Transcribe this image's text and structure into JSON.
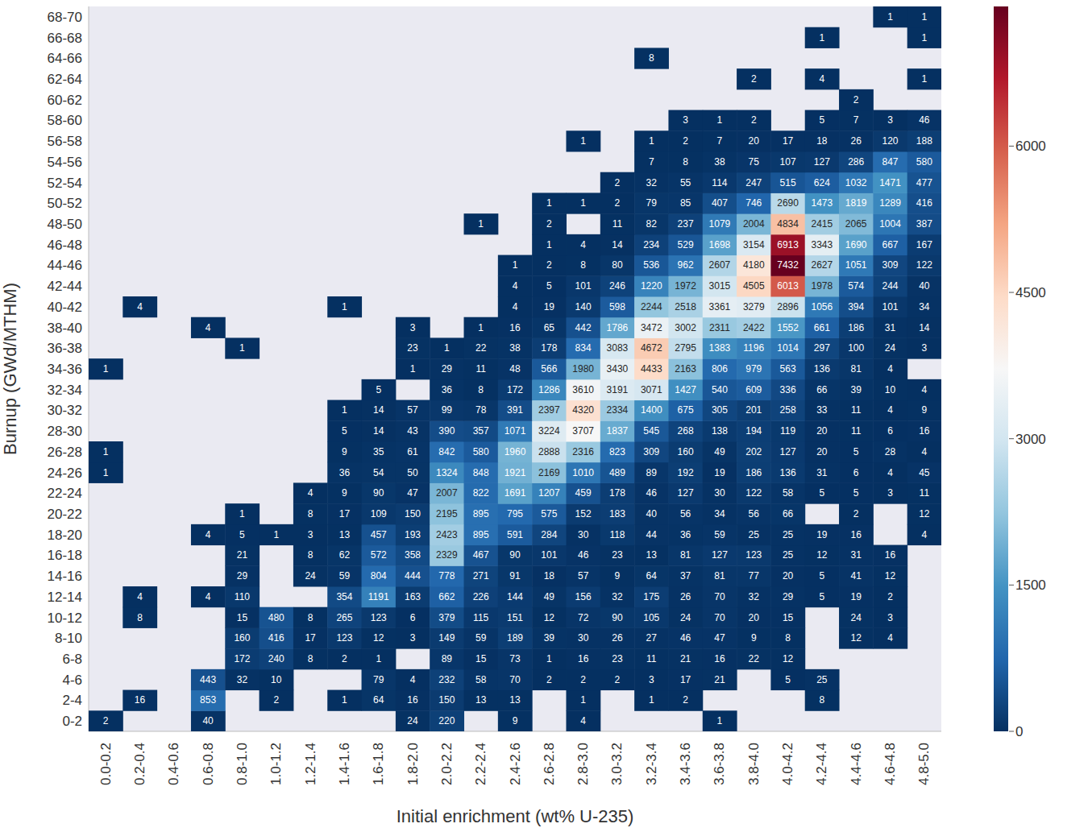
{
  "chart_data": {
    "type": "heatmap",
    "xlabel": "Initial enrichment (wt% U-235)",
    "ylabel": "Burnup (GWd/MTHM)",
    "data_labels": true,
    "x_categories": [
      "0.0-0.2",
      "0.2-0.4",
      "0.4-0.6",
      "0.6-0.8",
      "0.8-1.0",
      "1.0-1.2",
      "1.2-1.4",
      "1.4-1.6",
      "1.6-1.8",
      "1.8-2.0",
      "2.0-2.2",
      "2.2-2.4",
      "2.4-2.6",
      "2.6-2.8",
      "2.8-3.0",
      "3.0-3.2",
      "3.2-3.4",
      "3.4-3.6",
      "3.6-3.8",
      "3.8-4.0",
      "4.0-4.2",
      "4.2-4.4",
      "4.4-4.6",
      "4.6-4.8",
      "4.8-5.0"
    ],
    "y_categories": [
      "0-2",
      "2-4",
      "4-6",
      "6-8",
      "8-10",
      "10-12",
      "12-14",
      "14-16",
      "16-18",
      "18-20",
      "20-22",
      "22-24",
      "24-26",
      "26-28",
      "28-30",
      "30-32",
      "32-34",
      "34-36",
      "36-38",
      "38-40",
      "40-42",
      "42-44",
      "44-46",
      "46-48",
      "48-50",
      "50-52",
      "52-54",
      "54-56",
      "56-58",
      "58-60",
      "60-62",
      "62-64",
      "64-66",
      "66-68",
      "68-70"
    ],
    "cells": [
      [
        2,
        null,
        null,
        40,
        null,
        null,
        null,
        null,
        null,
        24,
        220,
        null,
        9,
        null,
        4,
        null,
        null,
        null,
        1,
        null,
        null,
        null,
        null,
        null,
        null
      ],
      [
        null,
        16,
        null,
        853,
        null,
        2,
        null,
        1,
        64,
        16,
        150,
        13,
        13,
        null,
        1,
        null,
        1,
        2,
        null,
        null,
        null,
        8,
        null,
        null,
        null
      ],
      [
        null,
        null,
        null,
        443,
        32,
        10,
        null,
        null,
        79,
        4,
        232,
        58,
        70,
        2,
        2,
        2,
        3,
        17,
        21,
        null,
        5,
        25,
        null,
        null,
        null
      ],
      [
        null,
        null,
        null,
        null,
        172,
        240,
        8,
        2,
        1,
        null,
        89,
        15,
        73,
        1,
        16,
        23,
        11,
        21,
        16,
        22,
        12,
        null,
        null,
        null,
        null
      ],
      [
        null,
        null,
        null,
        null,
        160,
        416,
        17,
        123,
        12,
        3,
        149,
        59,
        189,
        39,
        30,
        26,
        27,
        46,
        47,
        9,
        8,
        null,
        12,
        4,
        null
      ],
      [
        null,
        8,
        null,
        null,
        15,
        480,
        8,
        265,
        123,
        6,
        379,
        115,
        151,
        12,
        72,
        90,
        105,
        24,
        70,
        20,
        15,
        null,
        24,
        3,
        null
      ],
      [
        null,
        4,
        null,
        4,
        110,
        null,
        null,
        354,
        1191,
        163,
        662,
        226,
        144,
        49,
        156,
        32,
        175,
        26,
        70,
        32,
        29,
        5,
        19,
        2,
        null
      ],
      [
        null,
        null,
        null,
        null,
        29,
        null,
        24,
        59,
        804,
        444,
        778,
        271,
        91,
        18,
        57,
        9,
        64,
        37,
        81,
        77,
        20,
        5,
        41,
        12,
        null
      ],
      [
        null,
        null,
        null,
        null,
        21,
        null,
        8,
        62,
        572,
        358,
        2329,
        467,
        90,
        101,
        46,
        23,
        13,
        81,
        127,
        123,
        25,
        12,
        31,
        16,
        null
      ],
      [
        null,
        null,
        null,
        4,
        5,
        1,
        3,
        13,
        457,
        193,
        2423,
        895,
        591,
        284,
        30,
        118,
        44,
        36,
        59,
        25,
        25,
        19,
        16,
        null,
        4
      ],
      [
        null,
        null,
        null,
        null,
        1,
        null,
        8,
        17,
        109,
        150,
        2195,
        895,
        795,
        575,
        152,
        183,
        40,
        56,
        34,
        56,
        66,
        null,
        2,
        null,
        12
      ],
      [
        null,
        null,
        null,
        null,
        null,
        null,
        4,
        9,
        90,
        47,
        2007,
        822,
        1691,
        1207,
        459,
        178,
        46,
        127,
        30,
        122,
        58,
        5,
        5,
        3,
        11
      ],
      [
        1,
        null,
        null,
        null,
        null,
        null,
        null,
        36,
        54,
        50,
        1324,
        848,
        1921,
        2169,
        1010,
        489,
        89,
        192,
        19,
        186,
        136,
        31,
        6,
        4,
        45
      ],
      [
        1,
        null,
        null,
        null,
        null,
        null,
        null,
        9,
        35,
        61,
        842,
        580,
        1960,
        2888,
        2316,
        823,
        309,
        160,
        49,
        202,
        127,
        20,
        5,
        28,
        4
      ],
      [
        null,
        null,
        null,
        null,
        null,
        null,
        null,
        5,
        14,
        43,
        390,
        357,
        1071,
        3224,
        3707,
        1837,
        545,
        268,
        138,
        194,
        119,
        20,
        11,
        6,
        16
      ],
      [
        null,
        null,
        null,
        null,
        null,
        null,
        null,
        1,
        14,
        57,
        99,
        78,
        391,
        2397,
        4320,
        2334,
        1400,
        675,
        305,
        201,
        258,
        33,
        11,
        4,
        9
      ],
      [
        null,
        null,
        null,
        null,
        null,
        null,
        null,
        null,
        5,
        null,
        36,
        8,
        172,
        1286,
        3610,
        3191,
        3071,
        1427,
        540,
        609,
        336,
        66,
        39,
        10,
        4
      ],
      [
        1,
        null,
        null,
        null,
        null,
        null,
        null,
        null,
        null,
        1,
        29,
        11,
        48,
        566,
        1980,
        3430,
        4433,
        2163,
        806,
        979,
        563,
        136,
        81,
        4,
        null
      ],
      [
        null,
        null,
        null,
        null,
        1,
        null,
        null,
        null,
        null,
        23,
        1,
        22,
        38,
        178,
        834,
        3083,
        4672,
        2795,
        1383,
        1196,
        1014,
        297,
        100,
        24,
        3
      ],
      [
        null,
        null,
        null,
        4,
        null,
        null,
        null,
        null,
        null,
        3,
        null,
        1,
        16,
        65,
        442,
        1786,
        3472,
        3002,
        2311,
        2422,
        1552,
        661,
        186,
        31,
        14
      ],
      [
        null,
        4,
        null,
        null,
        null,
        null,
        null,
        1,
        null,
        null,
        null,
        null,
        4,
        19,
        140,
        598,
        2244,
        2518,
        3361,
        3279,
        2896,
        1056,
        394,
        101,
        34
      ],
      [
        null,
        null,
        null,
        null,
        null,
        null,
        null,
        null,
        null,
        null,
        null,
        null,
        4,
        5,
        101,
        246,
        1220,
        1972,
        3015,
        4505,
        6013,
        1978,
        574,
        244,
        40
      ],
      [
        null,
        null,
        null,
        null,
        null,
        null,
        null,
        null,
        null,
        null,
        null,
        null,
        1,
        2,
        8,
        80,
        536,
        962,
        2607,
        4180,
        7432,
        2627,
        1051,
        309,
        122
      ],
      [
        null,
        null,
        null,
        null,
        null,
        null,
        null,
        null,
        null,
        null,
        null,
        null,
        null,
        1,
        4,
        14,
        234,
        529,
        1698,
        3154,
        6913,
        3343,
        1690,
        667,
        167
      ],
      [
        null,
        null,
        null,
        null,
        null,
        null,
        null,
        null,
        null,
        null,
        null,
        1,
        null,
        2,
        null,
        11,
        82,
        237,
        1079,
        2004,
        4834,
        2415,
        2065,
        1004,
        387
      ],
      [
        null,
        null,
        null,
        null,
        null,
        null,
        null,
        null,
        null,
        null,
        null,
        null,
        null,
        1,
        1,
        2,
        79,
        85,
        407,
        746,
        2690,
        1473,
        1819,
        1289,
        416
      ],
      [
        null,
        null,
        null,
        null,
        null,
        null,
        null,
        null,
        null,
        null,
        null,
        null,
        null,
        null,
        null,
        2,
        32,
        55,
        114,
        247,
        515,
        624,
        1032,
        1471,
        477
      ],
      [
        null,
        null,
        null,
        null,
        null,
        null,
        null,
        null,
        null,
        null,
        null,
        null,
        null,
        null,
        null,
        null,
        7,
        8,
        38,
        75,
        107,
        127,
        286,
        847,
        580
      ],
      [
        null,
        null,
        null,
        null,
        null,
        null,
        null,
        null,
        null,
        null,
        null,
        null,
        null,
        null,
        1,
        null,
        1,
        2,
        7,
        20,
        17,
        18,
        26,
        120,
        188
      ],
      [
        null,
        null,
        null,
        null,
        null,
        null,
        null,
        null,
        null,
        null,
        null,
        null,
        null,
        null,
        null,
        null,
        null,
        3,
        1,
        2,
        null,
        5,
        7,
        3,
        46
      ],
      [
        null,
        null,
        null,
        null,
        null,
        null,
        null,
        null,
        null,
        null,
        null,
        null,
        null,
        null,
        null,
        null,
        null,
        null,
        null,
        null,
        null,
        null,
        2,
        null,
        null
      ],
      [
        null,
        null,
        null,
        null,
        null,
        null,
        null,
        null,
        null,
        null,
        null,
        null,
        null,
        null,
        null,
        null,
        null,
        null,
        null,
        2,
        null,
        4,
        null,
        null,
        1
      ],
      [
        null,
        null,
        null,
        null,
        null,
        null,
        null,
        null,
        null,
        null,
        null,
        null,
        null,
        null,
        null,
        null,
        8,
        null,
        null,
        null,
        null,
        null,
        null,
        null,
        null
      ],
      [
        null,
        null,
        null,
        null,
        null,
        null,
        null,
        null,
        null,
        null,
        null,
        null,
        null,
        null,
        null,
        null,
        null,
        null,
        null,
        null,
        null,
        1,
        null,
        null,
        1
      ],
      [
        null,
        null,
        null,
        null,
        null,
        null,
        null,
        null,
        null,
        null,
        null,
        null,
        null,
        null,
        null,
        null,
        null,
        null,
        null,
        null,
        null,
        null,
        null,
        1,
        1
      ]
    ],
    "colorbar": {
      "range": [
        0,
        7432
      ],
      "ticks": [
        0,
        1500,
        3000,
        4500,
        6000
      ]
    }
  }
}
